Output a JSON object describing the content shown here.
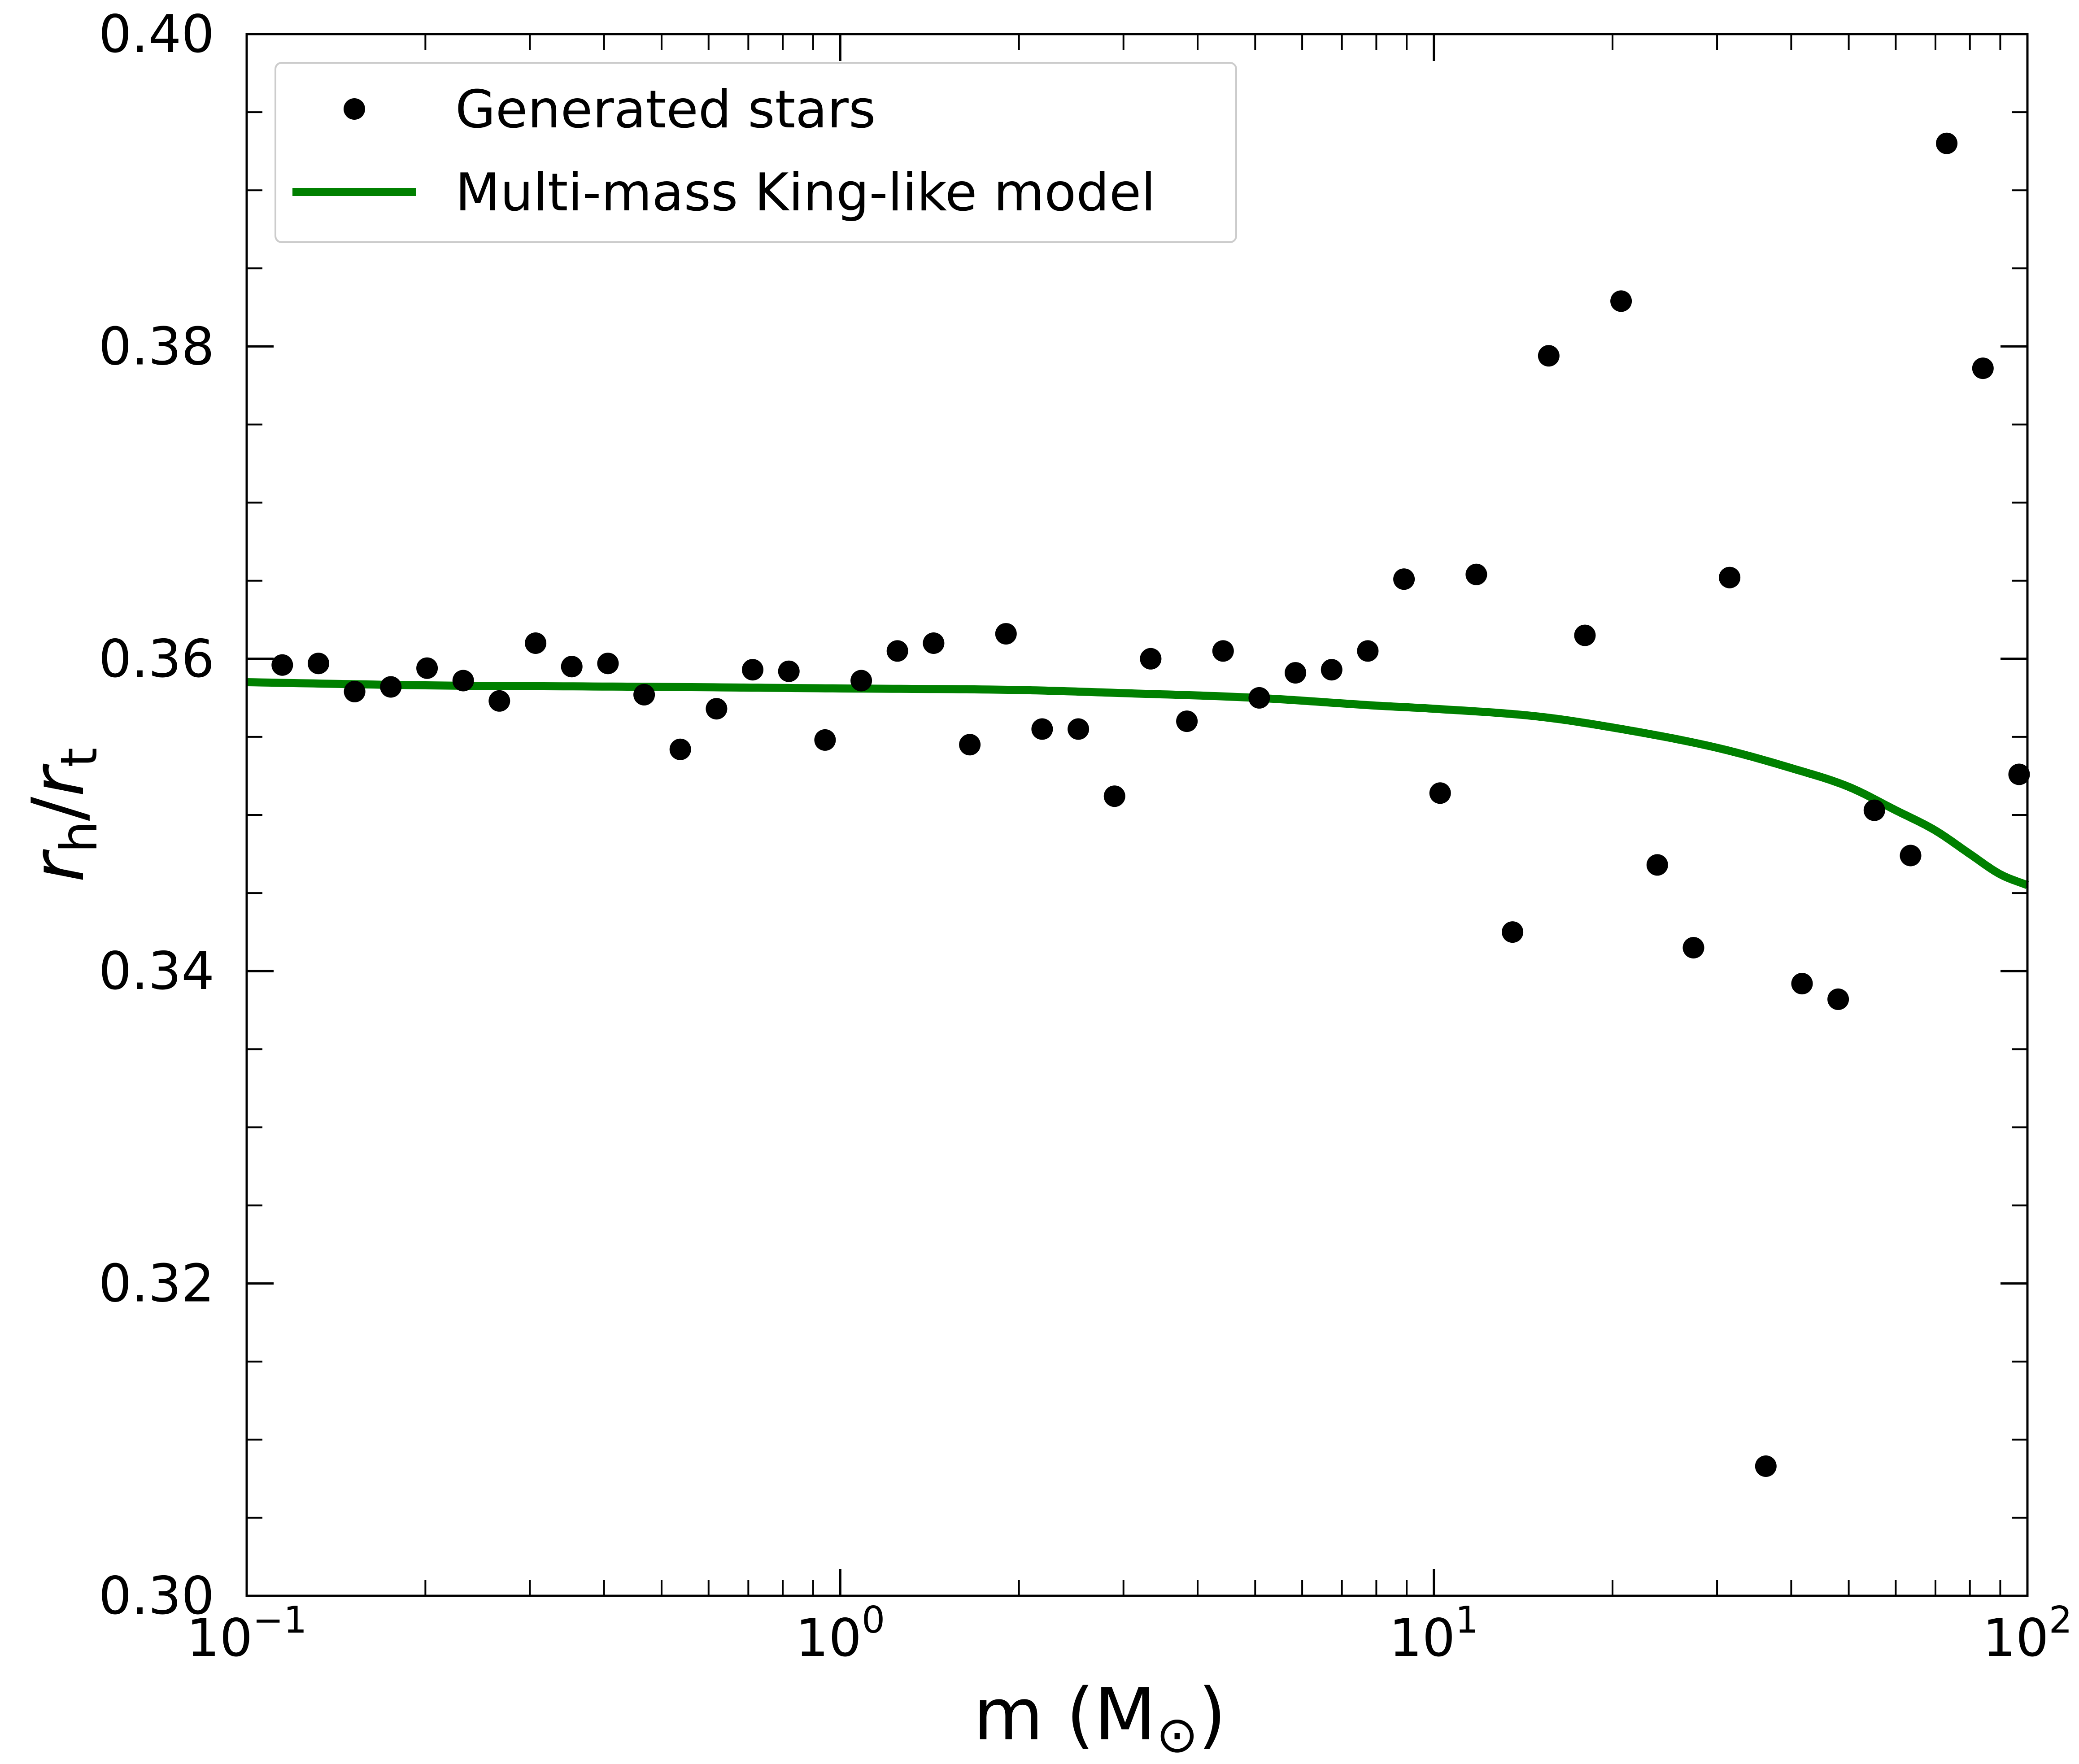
{
  "chart_data": {
    "type": "scatter",
    "x_scale": "log",
    "xlim": [
      0.1,
      100
    ],
    "ylim": [
      0.3,
      0.4
    ],
    "xticks": [
      {
        "value": 0.1,
        "base": "10",
        "exp": "−1"
      },
      {
        "value": 1,
        "base": "10",
        "exp": "0"
      },
      {
        "value": 10,
        "base": "10",
        "exp": "1"
      },
      {
        "value": 100,
        "base": "10",
        "exp": "2"
      }
    ],
    "yticks": [
      "0.30",
      "0.32",
      "0.34",
      "0.36",
      "0.38",
      "0.40"
    ],
    "xlabel": {
      "text": "m (M",
      "symbol": "⊙",
      "close": ")"
    },
    "ylabel": {
      "r1": "r",
      "sub1": "h",
      "slash": "/",
      "r2": "r",
      "sub2": "t"
    },
    "grid": false,
    "legend_position": "top-left",
    "series": [
      {
        "name": "Generated stars",
        "kind": "scatter",
        "color": "#000000",
        "points": [
          [
            0.1148,
            0.3596
          ],
          [
            0.1321,
            0.3597
          ],
          [
            0.152,
            0.3579
          ],
          [
            0.1749,
            0.3582
          ],
          [
            0.2013,
            0.3594
          ],
          [
            0.2316,
            0.3586
          ],
          [
            0.2665,
            0.3573
          ],
          [
            0.3067,
            0.361
          ],
          [
            0.3529,
            0.3595
          ],
          [
            0.4061,
            0.3597
          ],
          [
            0.4673,
            0.3577
          ],
          [
            0.5377,
            0.3542
          ],
          [
            0.6187,
            0.3568
          ],
          [
            0.7119,
            0.3593
          ],
          [
            0.8192,
            0.3592
          ],
          [
            0.9427,
            0.3548
          ],
          [
            1.0847,
            0.3586
          ],
          [
            1.2482,
            0.3605
          ],
          [
            1.4363,
            0.361
          ],
          [
            1.6527,
            0.3545
          ],
          [
            1.9018,
            0.3616
          ],
          [
            2.1884,
            0.3555
          ],
          [
            2.5181,
            0.3555
          ],
          [
            2.8976,
            0.3512
          ],
          [
            3.3342,
            0.36
          ],
          [
            3.8366,
            0.356
          ],
          [
            4.4148,
            0.3605
          ],
          [
            5.08,
            0.3575
          ],
          [
            5.8455,
            0.3591
          ],
          [
            6.7263,
            0.3593
          ],
          [
            7.7399,
            0.3605
          ],
          [
            8.9062,
            0.3651
          ],
          [
            10.248,
            0.3514
          ],
          [
            11.793,
            0.3654
          ],
          [
            13.57,
            0.3425
          ],
          [
            15.615,
            0.3794
          ],
          [
            17.968,
            0.3615
          ],
          [
            20.675,
            0.3829
          ],
          [
            23.791,
            0.3468
          ],
          [
            27.376,
            0.3415
          ],
          [
            31.501,
            0.3652
          ],
          [
            36.248,
            0.3083
          ],
          [
            41.71,
            0.3392
          ],
          [
            47.995,
            0.3382
          ],
          [
            55.228,
            0.3503
          ],
          [
            63.55,
            0.3474
          ],
          [
            73.126,
            0.393
          ],
          [
            84.146,
            0.3786
          ],
          [
            96.826,
            0.3526
          ]
        ]
      },
      {
        "name": "Multi-mass King-like model",
        "kind": "line",
        "color": "#008000",
        "points": [
          [
            0.1,
            0.3585
          ],
          [
            0.2,
            0.3583
          ],
          [
            0.5,
            0.3582
          ],
          [
            1.0,
            0.3581
          ],
          [
            2.0,
            0.358
          ],
          [
            3.0,
            0.3578
          ],
          [
            5.0,
            0.3575
          ],
          [
            8.0,
            0.357
          ],
          [
            10.0,
            0.3568
          ],
          [
            15.0,
            0.3563
          ],
          [
            20.0,
            0.3556
          ],
          [
            30.0,
            0.3543
          ],
          [
            40.0,
            0.353
          ],
          [
            50.0,
            0.3518
          ],
          [
            60.0,
            0.3503
          ],
          [
            70.0,
            0.349
          ],
          [
            80.0,
            0.3475
          ],
          [
            90.0,
            0.3462
          ],
          [
            100.0,
            0.3455
          ]
        ]
      }
    ]
  }
}
